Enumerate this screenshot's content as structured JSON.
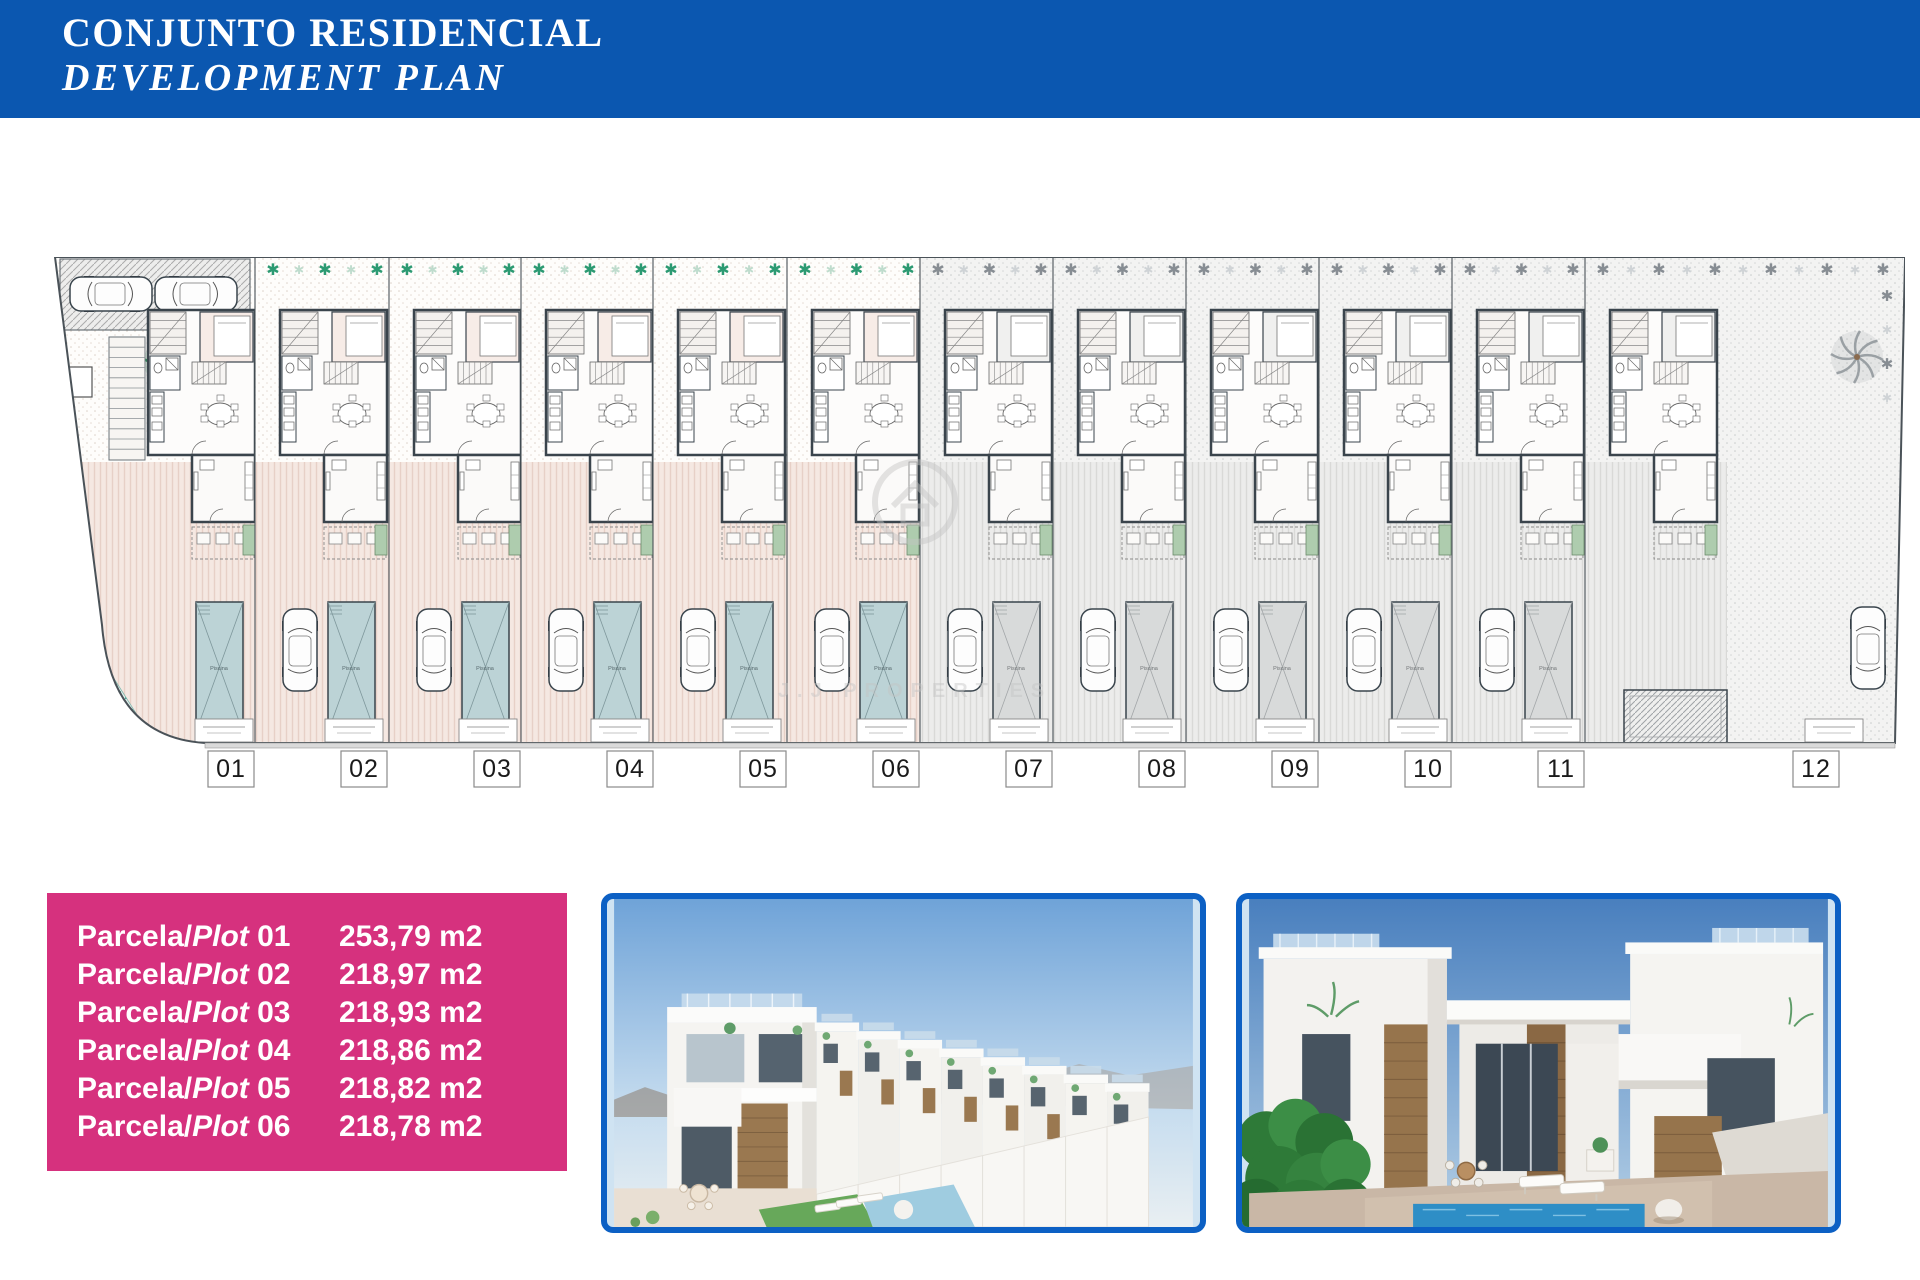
{
  "header": {
    "line1": "CONJUNTO RESIDENCIAL",
    "line2": "DEVELOPMENT PLAN",
    "bg_color": "#0B57B0"
  },
  "colors": {
    "accent_pink": "#D6317E",
    "photo_border_blue": "#0C60C4",
    "plan_wall": "#3A444C",
    "pool_teal": "#BCD3D6",
    "tree_green": "#2C9A72",
    "tree_grey": "#878D93"
  },
  "site_plan": {
    "watermark": "J.J PROPERTIES",
    "pool_label": "Piscina",
    "plots": [
      {
        "number": "01",
        "theme": "pink",
        "type": "wide-left"
      },
      {
        "number": "02",
        "theme": "pink",
        "type": "standard"
      },
      {
        "number": "03",
        "theme": "pink",
        "type": "standard"
      },
      {
        "number": "04",
        "theme": "pink",
        "type": "standard"
      },
      {
        "number": "05",
        "theme": "pink",
        "type": "standard"
      },
      {
        "number": "06",
        "theme": "pink",
        "type": "standard"
      },
      {
        "number": "07",
        "theme": "grey",
        "type": "standard"
      },
      {
        "number": "08",
        "theme": "grey",
        "type": "standard"
      },
      {
        "number": "09",
        "theme": "grey",
        "type": "standard"
      },
      {
        "number": "10",
        "theme": "grey",
        "type": "standard"
      },
      {
        "number": "11",
        "theme": "grey",
        "type": "standard"
      },
      {
        "number": "12",
        "theme": "grey",
        "type": "wide-right"
      }
    ]
  },
  "plot_table": {
    "rows": [
      {
        "label": "Parcela/",
        "label_italic": "Plot",
        "number": "01",
        "area": "253,79 m2"
      },
      {
        "label": "Parcela/",
        "label_italic": "Plot",
        "number": "02",
        "area": "218,97 m2"
      },
      {
        "label": "Parcela/",
        "label_italic": "Plot",
        "number": "03",
        "area": "218,93 m2"
      },
      {
        "label": "Parcela/",
        "label_italic": "Plot",
        "number": "04",
        "area": "218,86 m2"
      },
      {
        "label": "Parcela/",
        "label_italic": "Plot",
        "number": "05",
        "area": "218,82 m2"
      },
      {
        "label": "Parcela/",
        "label_italic": "Plot",
        "number": "06",
        "area": "218,78 m2"
      }
    ]
  }
}
